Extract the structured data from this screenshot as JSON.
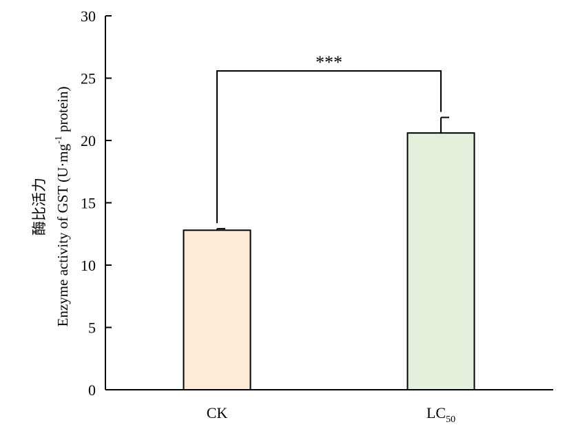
{
  "chart_data": {
    "type": "bar",
    "categories": [
      "CK",
      "LC"
    ],
    "category_subscripts": [
      "",
      "50"
    ],
    "values": [
      12.8,
      20.6
    ],
    "errors": [
      0.12,
      1.25
    ],
    "bar_colors": [
      "#fdebd6",
      "#e3f1dc"
    ],
    "ylim": [
      0,
      30
    ],
    "yticks": [
      "0",
      "5",
      "10",
      "15",
      "20",
      "25",
      "30"
    ],
    "ylabel_line1": "酶比活力",
    "ylabel_line2_main": "Enzyme activity of GST (U·mg",
    "ylabel_line2_sup": "-1",
    "ylabel_line2_end": " protein)",
    "significance": "***",
    "grid": false
  }
}
